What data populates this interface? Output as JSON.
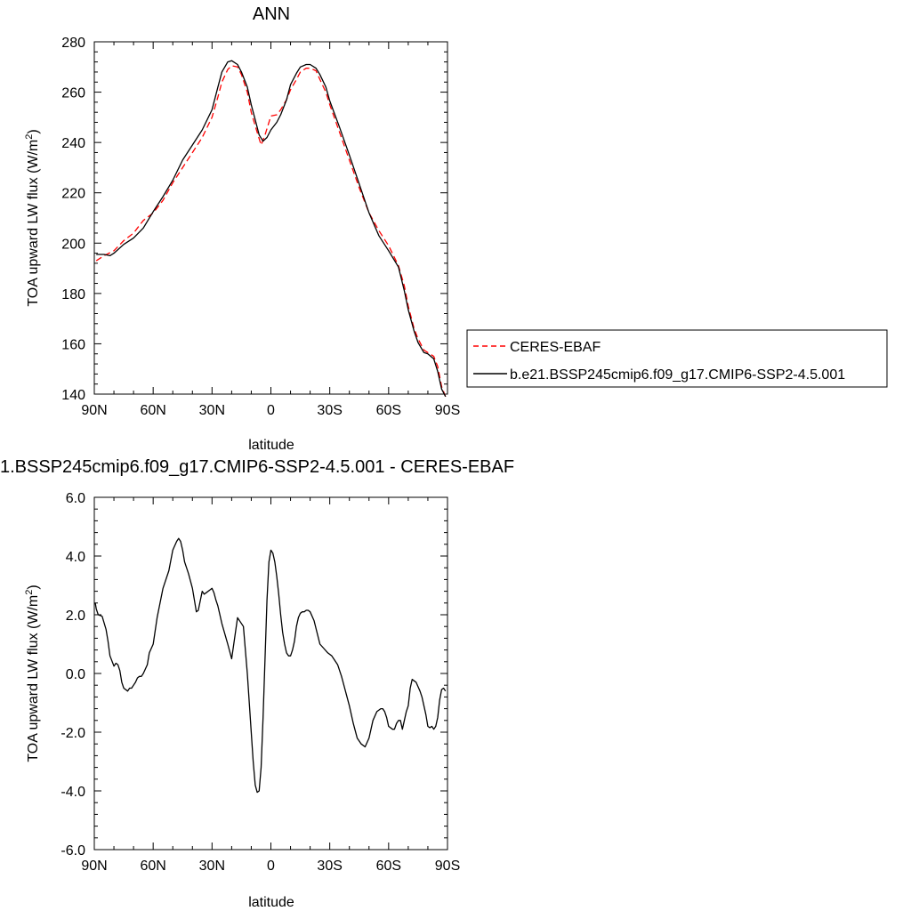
{
  "chart_data": [
    {
      "type": "line",
      "title": "ANN",
      "xlabel": "latitude",
      "ylabel_main": "TOA upward LW flux (W/m",
      "ylabel_sup": "2",
      "ylabel_close": ")",
      "xlim": [
        90,
        -90
      ],
      "ylim": [
        140,
        280
      ],
      "xticks": [
        {
          "v": 90,
          "label": "90N"
        },
        {
          "v": 60,
          "label": "60N"
        },
        {
          "v": 30,
          "label": "30N"
        },
        {
          "v": 0,
          "label": "0"
        },
        {
          "v": -30,
          "label": "30S"
        },
        {
          "v": -60,
          "label": "60S"
        },
        {
          "v": -90,
          "label": "90S"
        }
      ],
      "yticks": [
        {
          "v": 140,
          "label": "140"
        },
        {
          "v": 160,
          "label": "160"
        },
        {
          "v": 180,
          "label": "180"
        },
        {
          "v": 200,
          "label": "200"
        },
        {
          "v": 220,
          "label": "220"
        },
        {
          "v": 240,
          "label": "240"
        },
        {
          "v": 260,
          "label": "260"
        },
        {
          "v": 280,
          "label": "280"
        }
      ],
      "legend": "right",
      "series": [
        {
          "name": "CERES-EBAF",
          "color": "#ff0000",
          "dash": "dashed",
          "x": [
            89,
            85,
            80,
            75,
            70,
            65,
            60,
            55,
            50,
            45,
            40,
            35,
            30,
            27,
            25,
            22,
            20,
            17,
            15,
            12,
            10,
            7,
            5,
            3,
            0,
            -3,
            -5,
            -8,
            -10,
            -13,
            -15,
            -18,
            -20,
            -23,
            -25,
            -28,
            -30,
            -35,
            -40,
            -45,
            -50,
            -55,
            -60,
            -65,
            -68,
            -70,
            -73,
            -75,
            -78,
            -80,
            -83,
            -85,
            -87,
            -89
          ],
          "y": [
            193,
            195,
            197,
            201,
            204,
            209,
            212,
            217,
            224,
            230,
            236,
            242,
            250,
            258,
            264,
            269,
            270.5,
            270,
            267,
            260,
            252,
            244,
            239,
            243,
            250.5,
            251,
            253,
            257,
            261,
            265,
            268,
            269.5,
            269.5,
            268.5,
            265,
            260,
            255,
            244,
            233,
            222,
            212,
            205,
            199,
            191,
            183,
            175,
            166,
            162,
            157.5,
            156.5,
            155,
            151,
            143,
            139
          ]
        },
        {
          "name": "b.e21.BSSP245cmip6.f09_g17.CMIP6-SSP2-4.5.001",
          "color": "#000000",
          "dash": "solid",
          "x": [
            89,
            85,
            82,
            80,
            75,
            70,
            65,
            60,
            55,
            50,
            45,
            40,
            35,
            30,
            27,
            25,
            22,
            20,
            17,
            15,
            12,
            10,
            8,
            6,
            4,
            2,
            0,
            -3,
            -5,
            -8,
            -10,
            -13,
            -15,
            -18,
            -20,
            -23,
            -25,
            -28,
            -30,
            -35,
            -40,
            -45,
            -50,
            -55,
            -60,
            -65,
            -68,
            -70,
            -73,
            -75,
            -78,
            -80,
            -83,
            -85,
            -87,
            -89
          ],
          "y": [
            195.5,
            195.5,
            195,
            196,
            199.5,
            202,
            206,
            212.5,
            218.5,
            225,
            233,
            239,
            245,
            253,
            262,
            268,
            272,
            272.5,
            271,
            268,
            262,
            255,
            249,
            243,
            240.5,
            242,
            245,
            248,
            251,
            257,
            263,
            267.5,
            270,
            271,
            271,
            269.5,
            267,
            262,
            256.5,
            246,
            235,
            223.5,
            212,
            203,
            197,
            190.5,
            181,
            173.5,
            165,
            160.5,
            156.5,
            156,
            154,
            149,
            142,
            139
          ]
        }
      ]
    },
    {
      "type": "line",
      "title": "1.BSSP245cmip6.f09_g17.CMIP6-SSP2-4.5.001 - CERES-EBAF",
      "xlabel": "latitude",
      "ylabel_main": "TOA upward LW flux (W/m",
      "ylabel_sup": "2",
      "ylabel_close": ")",
      "xlim": [
        90,
        -90
      ],
      "ylim": [
        -6,
        6
      ],
      "xticks": [
        {
          "v": 90,
          "label": "90N"
        },
        {
          "v": 60,
          "label": "60N"
        },
        {
          "v": 30,
          "label": "30N"
        },
        {
          "v": 0,
          "label": "0"
        },
        {
          "v": -30,
          "label": "30S"
        },
        {
          "v": -60,
          "label": "60S"
        },
        {
          "v": -90,
          "label": "90S"
        }
      ],
      "yticks": [
        {
          "v": -6,
          "label": "-6.0"
        },
        {
          "v": -4,
          "label": "-4.0"
        },
        {
          "v": -2,
          "label": "-2.0"
        },
        {
          "v": 0,
          "label": "0.0"
        },
        {
          "v": 2,
          "label": "2.0"
        },
        {
          "v": 4,
          "label": "4.0"
        },
        {
          "v": 6,
          "label": "6.0"
        }
      ],
      "series": [
        {
          "name": "",
          "color": "#000000",
          "dash": "solid",
          "x": [
            89.5,
            89,
            88,
            86,
            84,
            83,
            82,
            80,
            79,
            78,
            77,
            76,
            75,
            73,
            72,
            71,
            70,
            69,
            68,
            67,
            66,
            65,
            63,
            62,
            60,
            58,
            55,
            52,
            50,
            48,
            47,
            46,
            45,
            44,
            43,
            42,
            40,
            38,
            37,
            35,
            34,
            33,
            31,
            30,
            29,
            28,
            27,
            25,
            22,
            20,
            17,
            14,
            12,
            10,
            9,
            8,
            7,
            6,
            5,
            4,
            3,
            2,
            1,
            0,
            -1,
            -2,
            -3,
            -4,
            -5,
            -6,
            -7,
            -8,
            -9,
            -10,
            -11,
            -12,
            -13,
            -14,
            -15,
            -16,
            -17,
            -18,
            -19,
            -20,
            -22,
            -25,
            -27,
            -29,
            -31,
            -32,
            -34,
            -36,
            -38,
            -40,
            -42,
            -44,
            -46,
            -48,
            -50,
            -52,
            -54,
            -56,
            -57,
            -58,
            -59,
            -60,
            -62,
            -63,
            -64,
            -65,
            -66,
            -67,
            -68,
            -69,
            -70,
            -71,
            -72,
            -73,
            -74,
            -75,
            -76,
            -77,
            -78,
            -79,
            -80,
            -81,
            -82,
            -83,
            -84,
            -85,
            -86,
            -87,
            -88,
            -89
          ],
          "y": [
            2.4,
            2.2,
            2.0,
            1.95,
            1.5,
            1.1,
            0.6,
            0.25,
            0.35,
            0.3,
            0.1,
            -0.3,
            -0.5,
            -0.6,
            -0.5,
            -0.5,
            -0.4,
            -0.3,
            -0.15,
            -0.1,
            -0.1,
            0.0,
            0.3,
            0.7,
            1.0,
            1.9,
            2.9,
            3.5,
            4.2,
            4.5,
            4.6,
            4.5,
            4.2,
            3.8,
            3.6,
            3.4,
            2.9,
            2.1,
            2.15,
            2.8,
            2.7,
            2.75,
            2.85,
            2.9,
            2.75,
            2.5,
            2.3,
            1.7,
            1.0,
            0.5,
            1.9,
            1.6,
            0.0,
            -2.0,
            -3.0,
            -3.8,
            -4.05,
            -4.0,
            -3.2,
            -1.5,
            0.5,
            2.5,
            3.8,
            4.2,
            4.1,
            3.8,
            3.3,
            2.7,
            2.0,
            1.4,
            1.0,
            0.7,
            0.6,
            0.6,
            0.8,
            1.1,
            1.6,
            1.9,
            2.05,
            2.1,
            2.1,
            2.15,
            2.15,
            2.1,
            1.8,
            1.0,
            0.85,
            0.7,
            0.6,
            0.5,
            0.3,
            -0.1,
            -0.6,
            -1.1,
            -1.7,
            -2.2,
            -2.4,
            -2.5,
            -2.2,
            -1.6,
            -1.3,
            -1.2,
            -1.2,
            -1.3,
            -1.5,
            -1.8,
            -1.9,
            -1.9,
            -1.7,
            -1.6,
            -1.6,
            -1.9,
            -1.6,
            -1.3,
            -1.1,
            -0.5,
            -0.2,
            -0.25,
            -0.3,
            -0.45,
            -0.6,
            -0.8,
            -1.1,
            -1.4,
            -1.8,
            -1.85,
            -1.8,
            -1.9,
            -1.8,
            -1.5,
            -0.9,
            -0.55,
            -0.5,
            -0.6
          ]
        }
      ]
    }
  ]
}
